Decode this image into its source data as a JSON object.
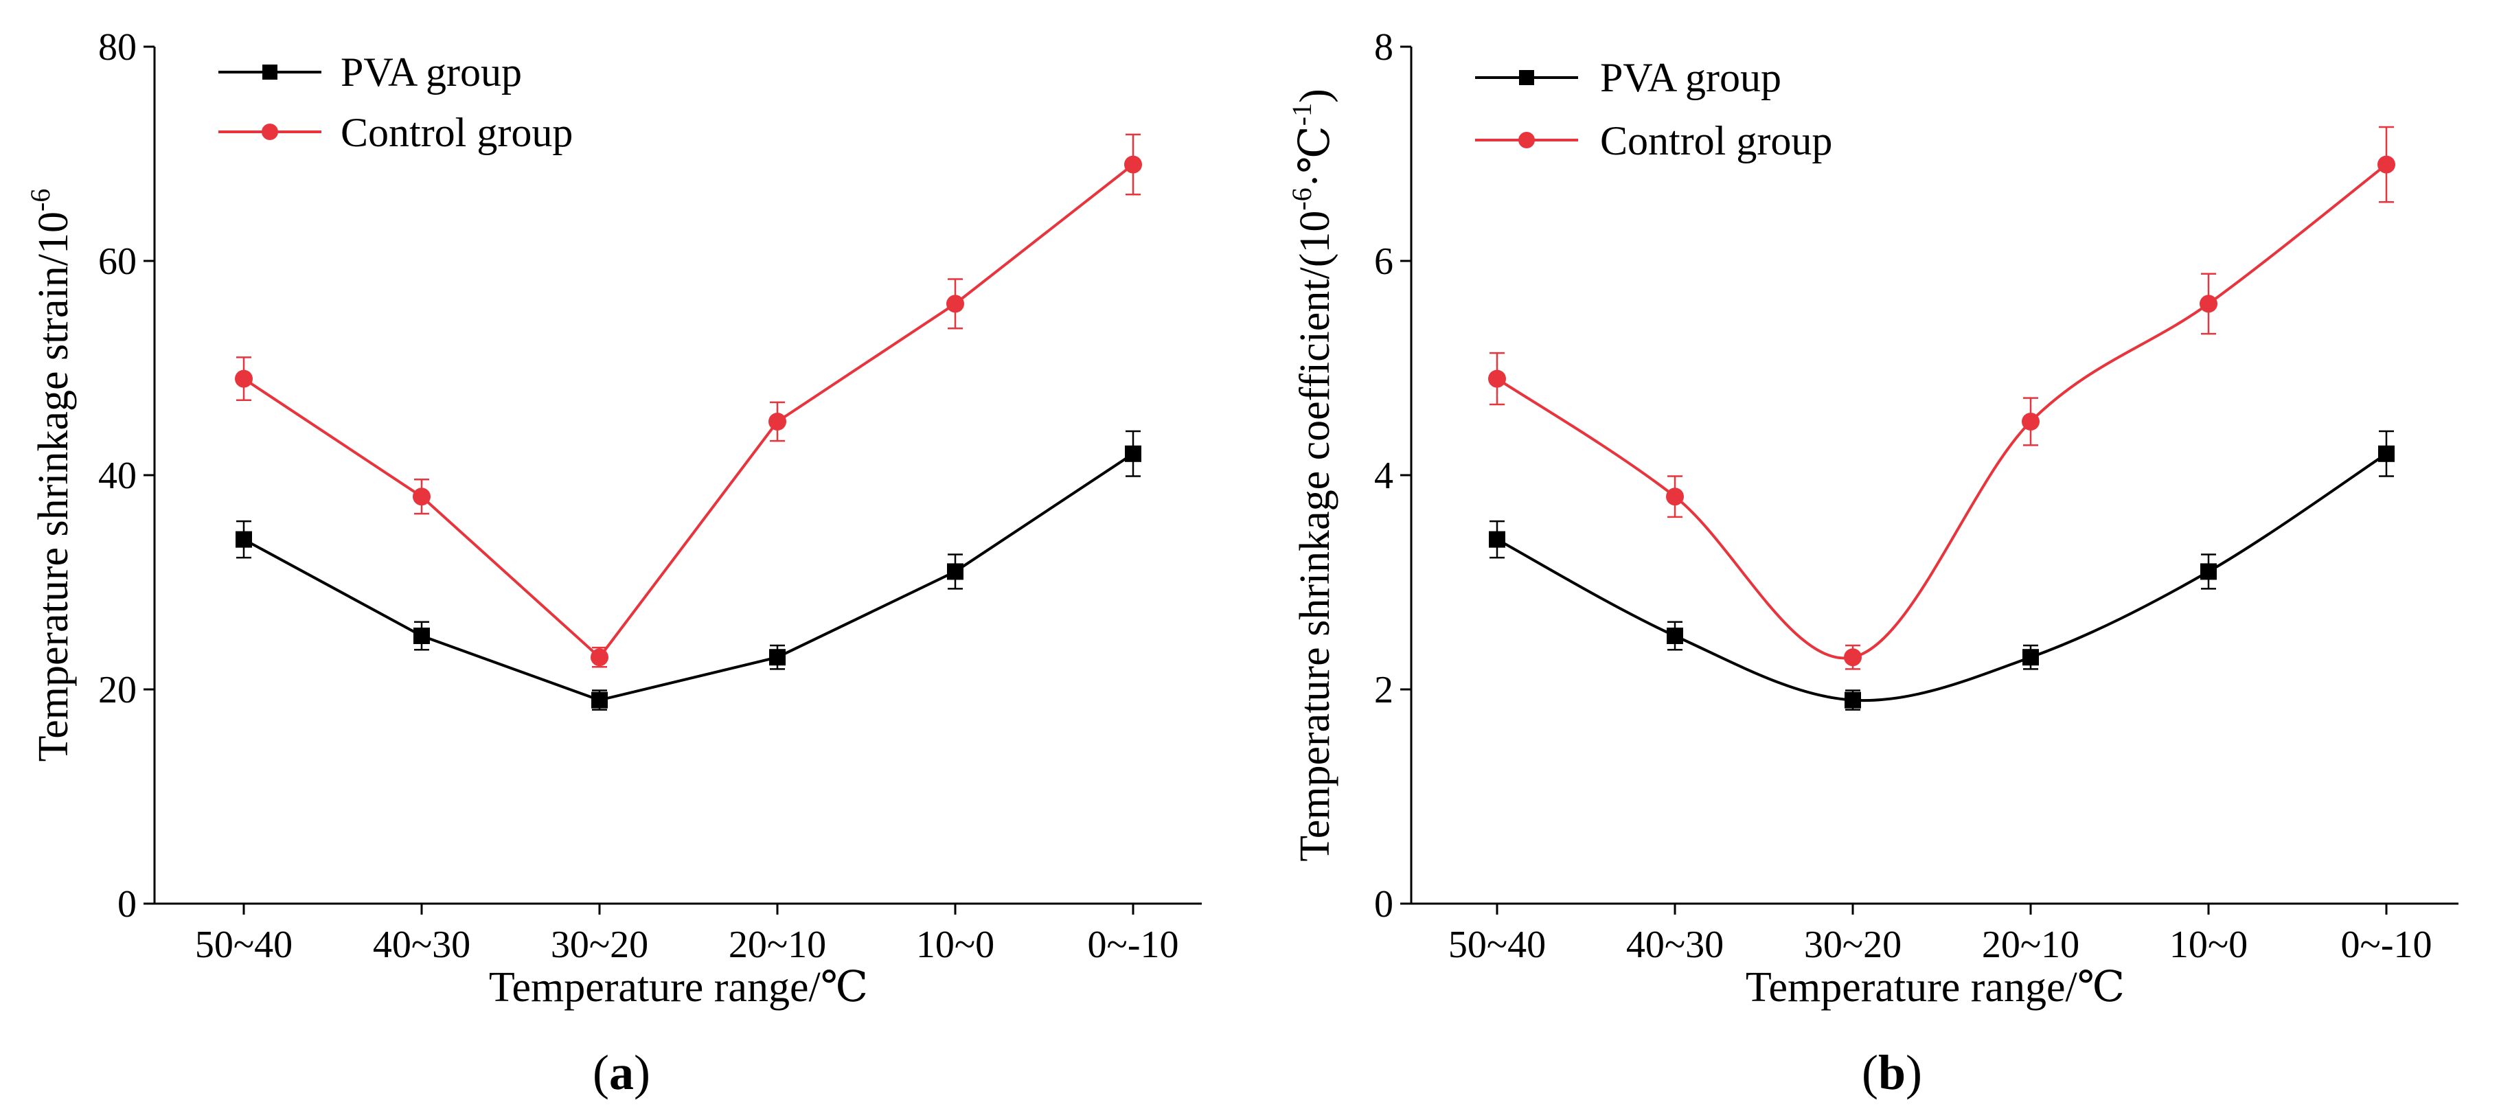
{
  "chart_data": [
    {
      "type": "line",
      "panel_label": {
        "open": "(",
        "letter": "a",
        "close": ")"
      },
      "xlabel": "Temperature range/℃",
      "ylabel": {
        "text": "Temperature shrinkage strain/10",
        "sup": "-6"
      },
      "categories": [
        "50~40",
        "40~30",
        "30~20",
        "20~10",
        "10~0",
        "0~-10"
      ],
      "ylim": [
        0,
        80
      ],
      "yticks": [
        0,
        20,
        40,
        60,
        80
      ],
      "ytick_labels": [
        "0",
        "20",
        "40",
        "60",
        "80"
      ],
      "smooth": false,
      "legend_position": "top-left",
      "series": [
        {
          "name": "PVA group",
          "color": "#000000",
          "marker": "square",
          "values": [
            34,
            25,
            19,
            23,
            31,
            42
          ],
          "errors": [
            1.7,
            1.3,
            0.9,
            1.1,
            1.6,
            2.1
          ]
        },
        {
          "name": "Control group",
          "color": "#e8343c",
          "marker": "circle",
          "values": [
            49,
            38,
            23,
            45,
            56,
            69
          ],
          "errors": [
            2.0,
            1.6,
            0.9,
            1.8,
            2.3,
            2.8
          ]
        }
      ]
    },
    {
      "type": "line",
      "panel_label": {
        "open": "(",
        "letter": "b",
        "close": ")"
      },
      "xlabel": "Temperature range/℃",
      "ylabel": {
        "text": "Temperature shrinkage coefficient/(10",
        "sup": "-6",
        "mid": "·℃",
        "sup2": "-1",
        "end": ")"
      },
      "categories": [
        "50~40",
        "40~30",
        "30~20",
        "20~10",
        "10~0",
        "0~-10"
      ],
      "ylim": [
        0,
        8
      ],
      "yticks": [
        0,
        2,
        4,
        6,
        8
      ],
      "ytick_labels": [
        "0",
        "2",
        "4",
        "6",
        "8"
      ],
      "smooth": true,
      "legend_position": "top-left",
      "series": [
        {
          "name": "PVA group",
          "color": "#000000",
          "marker": "square",
          "values": [
            3.4,
            2.5,
            1.9,
            2.3,
            3.1,
            4.2
          ],
          "errors": [
            0.17,
            0.13,
            0.09,
            0.11,
            0.16,
            0.21
          ]
        },
        {
          "name": "Control group",
          "color": "#e8343c",
          "marker": "circle",
          "values": [
            4.9,
            3.8,
            2.3,
            4.5,
            5.6,
            6.9
          ],
          "errors": [
            0.24,
            0.19,
            0.11,
            0.22,
            0.28,
            0.35
          ]
        }
      ]
    }
  ]
}
